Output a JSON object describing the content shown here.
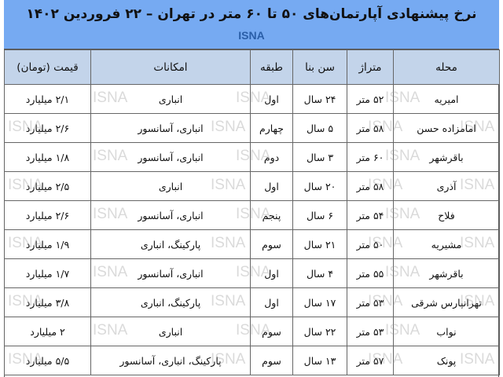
{
  "title": "نرخ پیشنهادی آپارتمان‌های ۵۰ تا ۶۰ متر در تهران – ۲۲ فروردین ۱۴۰۲",
  "subtitle": "ISNA",
  "watermark": "ISNA",
  "colors": {
    "title_band": "#76aaf2",
    "header_row": "#c3d4ea",
    "subtitle": "#2a5ea8"
  },
  "table": {
    "headers": [
      "محله",
      "متراژ",
      "سن بنا",
      "طبقه",
      "امکانات",
      "قیمت (تومان)"
    ],
    "rows": [
      [
        "امیریه",
        "۵۲ متر",
        "۲۴ سال",
        "اول",
        "انباری",
        "۲/۱ میلیارد"
      ],
      [
        "امامزاده حسن",
        "۵۸ متر",
        "۵ سال",
        "چهارم",
        "انباری، آسانسور",
        "۲/۶ میلیارد"
      ],
      [
        "باقرشهر",
        "۶۰ متر",
        "۳ سال",
        "دوم",
        "انباری، آسانسور",
        "۱/۸ میلیارد"
      ],
      [
        "آذری",
        "۵۸ متر",
        "۲۰ سال",
        "اول",
        "انباری",
        "۲/۵ میلیارد"
      ],
      [
        "فلاح",
        "۵۴ متر",
        "۶ سال",
        "پنجم",
        "انباری، آسانسور",
        "۲/۶ میلیارد"
      ],
      [
        "مشیریه",
        "۵۰ متر",
        "۲۱ سال",
        "سوم",
        "پارکینگ، انباری",
        "۱/۹ میلیارد"
      ],
      [
        "باقرشهر",
        "۵۵ متر",
        "۴ سال",
        "اول",
        "انباری، آسانسور",
        "۱/۷ میلیارد"
      ],
      [
        "تهرانپارس شرقی",
        "۵۳ متر",
        "۱۷ سال",
        "اول",
        "پارکینگ، انباری",
        "۳/۸ میلیارد"
      ],
      [
        "نواب",
        "۵۳ متر",
        "۲۲ سال",
        "سوم",
        "انباری",
        "۲ میلیارد"
      ],
      [
        "پونک",
        "۵۷ متر",
        "۱۳ سال",
        "سوم",
        "پارکینگ، انباری، آسانسور",
        "۵/۵ میلیارد"
      ]
    ]
  }
}
